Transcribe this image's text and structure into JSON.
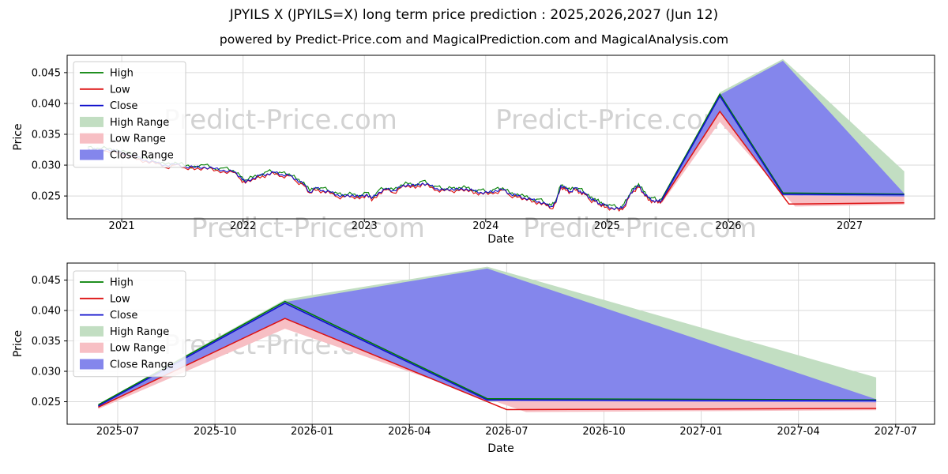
{
  "page": {
    "title": "JPYILS X (JPYILS=X) long term price prediction : 2025,2026,2027 (Jun 12)",
    "subtitle": "powered by Predict-Price.com and MagicalPrediction.com and MagicalAnalysis.com",
    "watermark": "Predict-Price.com",
    "background": "#ffffff"
  },
  "colors": {
    "high_line": "#007f00",
    "low_line": "#dd1111",
    "close_line": "#1111cc",
    "high_band": "#c2dec2",
    "low_band": "#f7bfc4",
    "close_band": "#8486ec",
    "grid": "#d9d9d9",
    "spine": "#000000",
    "watermark": "#8a8a8a",
    "legend_border": "#cccccc"
  },
  "chart_data": {
    "type": "line",
    "title": "JPYILS X (JPYILS=X) long term price prediction : 2025,2026,2027 (Jun 12)",
    "subtitle": "powered by Predict-Price.com and MagicalPrediction.com and MagicalAnalysis.com",
    "legend": [
      "High",
      "Low",
      "Close",
      "High Range",
      "Low Range",
      "Close Range"
    ],
    "legend_position": "upper left",
    "grid": true,
    "historical": {
      "note": "close anchors [year, price]; high/low run +/- offset around close with small wiggle",
      "high_offset": 0.0004,
      "low_offset": 0.0004,
      "wiggle": 0.00022,
      "close_anchors": [
        [
          2020.72,
          0.0327
        ],
        [
          2020.8,
          0.0324
        ],
        [
          2020.88,
          0.0326
        ],
        [
          2020.96,
          0.0322
        ],
        [
          2021.04,
          0.0318
        ],
        [
          2021.12,
          0.0313
        ],
        [
          2021.2,
          0.0308
        ],
        [
          2021.28,
          0.0304
        ],
        [
          2021.36,
          0.03
        ],
        [
          2021.44,
          0.0301
        ],
        [
          2021.52,
          0.0298
        ],
        [
          2021.6,
          0.0296
        ],
        [
          2021.68,
          0.0297
        ],
        [
          2021.76,
          0.0294
        ],
        [
          2021.84,
          0.0292
        ],
        [
          2021.92,
          0.0289
        ],
        [
          2021.98,
          0.0281
        ],
        [
          2022.02,
          0.0272
        ],
        [
          2022.08,
          0.0279
        ],
        [
          2022.14,
          0.0283
        ],
        [
          2022.2,
          0.0286
        ],
        [
          2022.26,
          0.0288
        ],
        [
          2022.32,
          0.0285
        ],
        [
          2022.38,
          0.0283
        ],
        [
          2022.44,
          0.0277
        ],
        [
          2022.5,
          0.0269
        ],
        [
          2022.55,
          0.0256
        ],
        [
          2022.6,
          0.0263
        ],
        [
          2022.66,
          0.0259
        ],
        [
          2022.72,
          0.0256
        ],
        [
          2022.78,
          0.0252
        ],
        [
          2022.84,
          0.0249
        ],
        [
          2022.9,
          0.0252
        ],
        [
          2022.96,
          0.0248
        ],
        [
          2023.02,
          0.0253
        ],
        [
          2023.06,
          0.0246
        ],
        [
          2023.12,
          0.0256
        ],
        [
          2023.18,
          0.0261
        ],
        [
          2023.24,
          0.0259
        ],
        [
          2023.3,
          0.0264
        ],
        [
          2023.36,
          0.0269
        ],
        [
          2023.42,
          0.0266
        ],
        [
          2023.48,
          0.0271
        ],
        [
          2023.54,
          0.0267
        ],
        [
          2023.6,
          0.0262
        ],
        [
          2023.66,
          0.0259
        ],
        [
          2023.72,
          0.0262
        ],
        [
          2023.78,
          0.026
        ],
        [
          2023.84,
          0.0262
        ],
        [
          2023.9,
          0.0258
        ],
        [
          2023.96,
          0.0256
        ],
        [
          2024.02,
          0.0255
        ],
        [
          2024.08,
          0.0259
        ],
        [
          2024.14,
          0.026
        ],
        [
          2024.2,
          0.0254
        ],
        [
          2024.26,
          0.025
        ],
        [
          2024.32,
          0.0247
        ],
        [
          2024.38,
          0.0244
        ],
        [
          2024.44,
          0.0241
        ],
        [
          2024.5,
          0.0236
        ],
        [
          2024.54,
          0.0233
        ],
        [
          2024.58,
          0.024
        ],
        [
          2024.62,
          0.0267
        ],
        [
          2024.66,
          0.0262
        ],
        [
          2024.7,
          0.0257
        ],
        [
          2024.74,
          0.0263
        ],
        [
          2024.78,
          0.0258
        ],
        [
          2024.82,
          0.0253
        ],
        [
          2024.86,
          0.0247
        ],
        [
          2024.9,
          0.0242
        ],
        [
          2024.94,
          0.0238
        ],
        [
          2024.98,
          0.0235
        ],
        [
          2025.04,
          0.0231
        ],
        [
          2025.1,
          0.0229
        ],
        [
          2025.14,
          0.0234
        ],
        [
          2025.18,
          0.0248
        ],
        [
          2025.22,
          0.0262
        ],
        [
          2025.26,
          0.0266
        ],
        [
          2025.3,
          0.0256
        ],
        [
          2025.34,
          0.0247
        ],
        [
          2025.38,
          0.0243
        ],
        [
          2025.42,
          0.0241
        ],
        [
          2025.45,
          0.0243
        ]
      ]
    },
    "forecast": {
      "close": [
        [
          2025.45,
          0.0243
        ],
        [
          2025.93,
          0.0412
        ],
        [
          2026.45,
          0.0253
        ],
        [
          2027.45,
          0.0252
        ]
      ],
      "high": [
        [
          2025.45,
          0.0245
        ],
        [
          2025.93,
          0.0415
        ],
        [
          2026.45,
          0.0255
        ],
        [
          2027.45,
          0.0253
        ]
      ],
      "low": [
        [
          2025.45,
          0.0241
        ],
        [
          2025.93,
          0.0387
        ],
        [
          2026.5,
          0.0237
        ],
        [
          2027.45,
          0.0239
        ]
      ],
      "bands": {
        "high_range": {
          "upper": [
            [
              2025.45,
              0.0246
            ],
            [
              2025.93,
              0.0418
            ],
            [
              2026.45,
              0.0472
            ],
            [
              2027.45,
              0.029
            ]
          ],
          "lower": [
            [
              2025.45,
              0.024
            ],
            [
              2025.93,
              0.0388
            ],
            [
              2026.45,
              0.025
            ],
            [
              2027.45,
              0.0248
            ]
          ]
        },
        "low_range": {
          "upper": [
            [
              2025.45,
              0.0244
            ],
            [
              2025.93,
              0.0402
            ],
            [
              2026.45,
              0.0252
            ],
            [
              2027.45,
              0.0251
            ]
          ],
          "lower": [
            [
              2025.45,
              0.0238
            ],
            [
              2025.93,
              0.037
            ],
            [
              2026.55,
              0.0233
            ],
            [
              2027.45,
              0.0236
            ]
          ]
        },
        "close_range": {
          "upper": [
            [
              2025.45,
              0.0245
            ],
            [
              2025.93,
              0.0414
            ],
            [
              2026.45,
              0.0469
            ],
            [
              2027.45,
              0.0254
            ]
          ],
          "lower": [
            [
              2025.45,
              0.0241
            ],
            [
              2025.93,
              0.0386
            ],
            [
              2026.45,
              0.0251
            ],
            [
              2027.45,
              0.0249
            ]
          ]
        }
      }
    },
    "axes": [
      {
        "name": "full-history",
        "xlabel": "Date",
        "ylabel": "Price",
        "xlim": [
          2020.55,
          2027.7
        ],
        "ylim": [
          0.0213,
          0.0478
        ],
        "show_historical": true,
        "xticks": [
          {
            "v": 2021,
            "label": "2021"
          },
          {
            "v": 2022,
            "label": "2022"
          },
          {
            "v": 2023,
            "label": "2023"
          },
          {
            "v": 2024,
            "label": "2024"
          },
          {
            "v": 2025,
            "label": "2025"
          },
          {
            "v": 2026,
            "label": "2026"
          },
          {
            "v": 2027,
            "label": "2027"
          }
        ],
        "yticks": [
          {
            "v": 0.025,
            "label": "0.025"
          },
          {
            "v": 0.03,
            "label": "0.030"
          },
          {
            "v": 0.035,
            "label": "0.035"
          },
          {
            "v": 0.04,
            "label": "0.040"
          },
          {
            "v": 0.045,
            "label": "0.045"
          }
        ]
      },
      {
        "name": "forecast-detail",
        "xlabel": "Date",
        "ylabel": "Price",
        "xlim": [
          2025.37,
          2027.6
        ],
        "ylim": [
          0.0213,
          0.0478
        ],
        "show_historical": false,
        "xticks": [
          {
            "v": 2025.5,
            "label": "2025-07"
          },
          {
            "v": 2025.75,
            "label": "2025-10"
          },
          {
            "v": 2026.0,
            "label": "2026-01"
          },
          {
            "v": 2026.25,
            "label": "2026-04"
          },
          {
            "v": 2026.5,
            "label": "2026-07"
          },
          {
            "v": 2026.75,
            "label": "2026-10"
          },
          {
            "v": 2027.0,
            "label": "2027-01"
          },
          {
            "v": 2027.25,
            "label": "2027-04"
          },
          {
            "v": 2027.5,
            "label": "2027-07"
          }
        ],
        "yticks": [
          {
            "v": 0.025,
            "label": "0.025"
          },
          {
            "v": 0.03,
            "label": "0.030"
          },
          {
            "v": 0.035,
            "label": "0.035"
          },
          {
            "v": 0.04,
            "label": "0.040"
          },
          {
            "v": 0.045,
            "label": "0.045"
          }
        ]
      }
    ]
  }
}
